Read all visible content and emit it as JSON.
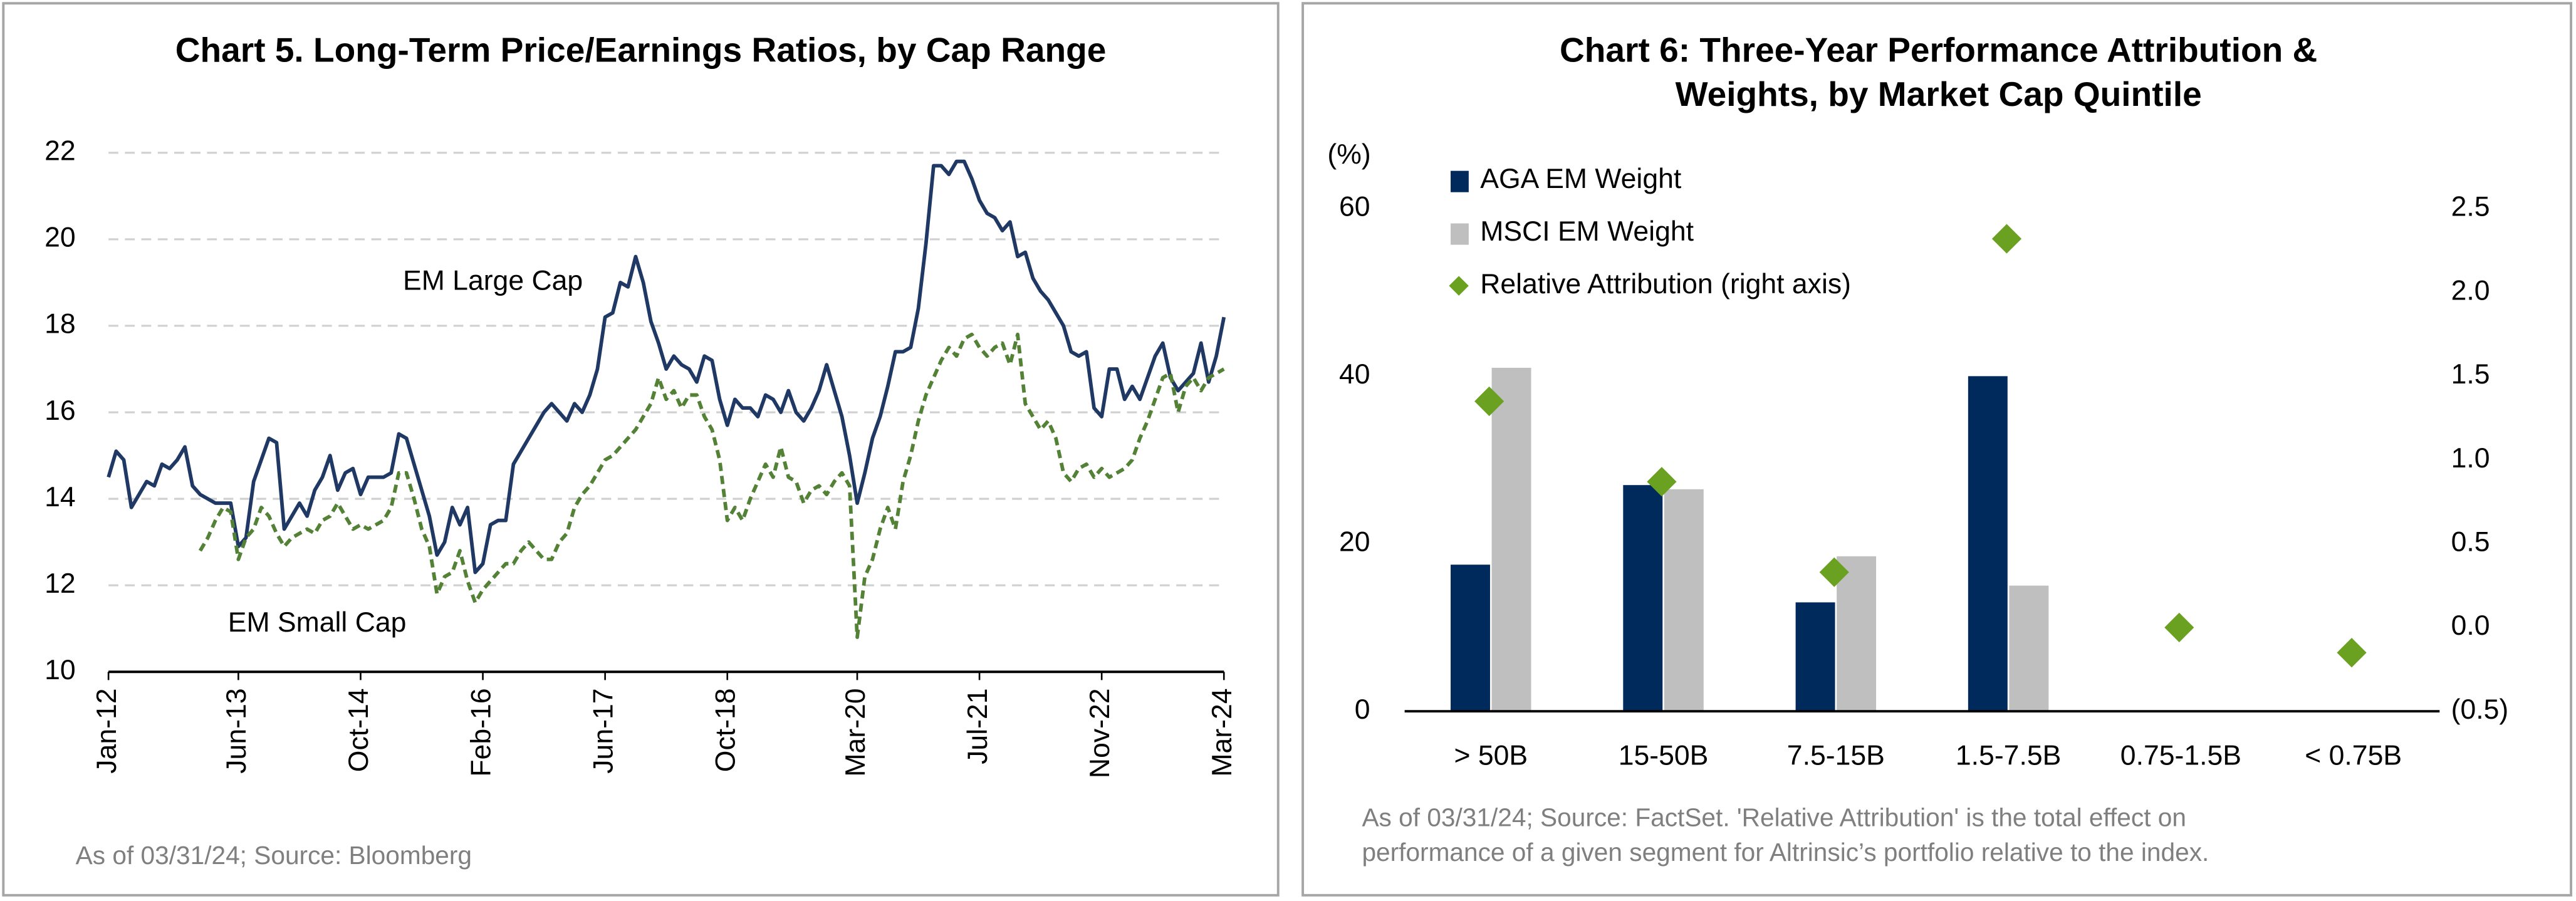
{
  "chart_data": [
    {
      "type": "line",
      "title": "Chart 5. Long-Term Price/Earnings Ratios, by Cap Range",
      "note": "As of 03/31/24; Source: Bloomberg",
      "categories": [
        "Jan-12",
        null,
        null,
        null,
        null,
        null,
        null,
        null,
        null,
        null,
        null,
        null,
        null,
        null,
        null,
        null,
        null,
        "Jun-13",
        null,
        null,
        null,
        null,
        null,
        null,
        null,
        null,
        null,
        null,
        null,
        null,
        null,
        null,
        null,
        "Oct-14",
        null,
        null,
        null,
        null,
        null,
        null,
        null,
        null,
        null,
        null,
        null,
        null,
        null,
        null,
        null,
        "Feb-16",
        null,
        null,
        null,
        null,
        null,
        null,
        null,
        null,
        null,
        null,
        null,
        null,
        null,
        null,
        null,
        "Jun-17",
        null,
        null,
        null,
        null,
        null,
        null,
        null,
        null,
        null,
        null,
        null,
        null,
        null,
        null,
        null,
        "Oct-18",
        null,
        null,
        null,
        null,
        null,
        null,
        null,
        null,
        null,
        null,
        null,
        null,
        null,
        null,
        null,
        null,
        "Mar-20",
        null,
        null,
        null,
        null,
        null,
        null,
        null,
        null,
        null,
        null,
        null,
        null,
        null,
        null,
        null,
        "Jul-21",
        null,
        null,
        null,
        null,
        null,
        null,
        null,
        null,
        null,
        null,
        null,
        null,
        null,
        null,
        null,
        "Nov-22",
        null,
        null,
        null,
        null,
        null,
        null,
        null,
        null,
        null,
        null,
        null,
        null,
        null,
        null,
        null,
        "Mar-24"
      ],
      "series": [
        {
          "name": "EM Large Cap",
          "color": "#1f3864",
          "dash": false,
          "values": [
            14.5,
            15.1,
            14.9,
            13.8,
            14.1,
            14.4,
            14.3,
            14.8,
            14.7,
            14.9,
            15.2,
            14.3,
            14.1,
            14.0,
            13.9,
            13.9,
            13.9,
            12.9,
            13.1,
            14.4,
            14.9,
            15.4,
            15.3,
            13.3,
            13.6,
            13.9,
            13.6,
            14.2,
            14.5,
            15.0,
            14.2,
            14.6,
            14.7,
            14.1,
            14.5,
            14.5,
            14.5,
            14.6,
            15.5,
            15.4,
            14.8,
            14.2,
            13.6,
            12.7,
            13.0,
            13.8,
            13.4,
            13.8,
            12.3,
            12.5,
            13.4,
            13.5,
            13.5,
            14.8,
            15.1,
            15.4,
            15.7,
            16.0,
            16.2,
            16.0,
            15.8,
            16.2,
            16.0,
            16.4,
            17.0,
            18.2,
            18.3,
            19.0,
            18.9,
            19.6,
            19.0,
            18.1,
            17.6,
            17.0,
            17.3,
            17.1,
            17.0,
            16.7,
            17.3,
            17.2,
            16.3,
            15.7,
            16.3,
            16.1,
            16.1,
            15.9,
            16.4,
            16.3,
            16.0,
            16.5,
            16.0,
            15.8,
            16.1,
            16.5,
            17.1,
            16.5,
            15.9,
            15.0,
            13.9,
            14.6,
            15.4,
            15.9,
            16.6,
            17.4,
            17.4,
            17.5,
            18.4,
            19.9,
            21.7,
            21.7,
            21.5,
            21.8,
            21.8,
            21.4,
            20.9,
            20.6,
            20.5,
            20.2,
            20.4,
            19.6,
            19.7,
            19.1,
            18.8,
            18.6,
            18.3,
            18.0,
            17.4,
            17.3,
            17.4,
            16.1,
            15.9,
            17.0,
            17.0,
            16.3,
            16.6,
            16.3,
            16.8,
            17.3,
            17.6,
            16.8,
            16.5,
            16.7,
            16.9,
            17.6,
            16.7,
            17.3,
            18.2
          ]
        },
        {
          "name": "EM Small Cap",
          "color": "#538135",
          "dash": true,
          "values": [
            null,
            null,
            null,
            null,
            null,
            null,
            null,
            null,
            null,
            null,
            null,
            null,
            12.8,
            13.1,
            13.5,
            13.8,
            13.7,
            12.6,
            13.1,
            13.3,
            13.8,
            13.6,
            13.2,
            12.9,
            13.1,
            13.2,
            13.3,
            13.2,
            13.5,
            13.6,
            13.9,
            13.6,
            13.3,
            13.4,
            13.3,
            13.4,
            13.5,
            13.8,
            14.6,
            14.6,
            14.0,
            13.3,
            12.9,
            11.8,
            12.2,
            12.3,
            12.8,
            12.1,
            11.6,
            11.9,
            12.1,
            12.3,
            12.5,
            12.5,
            12.8,
            13.0,
            12.8,
            12.6,
            12.6,
            13.0,
            13.2,
            13.8,
            14.1,
            14.3,
            14.6,
            14.9,
            15.0,
            15.2,
            15.4,
            15.6,
            15.9,
            16.2,
            16.8,
            16.3,
            16.5,
            16.1,
            16.4,
            16.4,
            15.9,
            15.6,
            14.9,
            13.5,
            13.8,
            13.5,
            14.0,
            14.4,
            14.8,
            14.5,
            15.2,
            14.5,
            14.4,
            13.9,
            14.2,
            14.3,
            14.1,
            14.4,
            14.6,
            14.3,
            10.8,
            12.2,
            12.6,
            13.3,
            13.8,
            13.3,
            14.4,
            15.0,
            15.8,
            16.4,
            16.8,
            17.2,
            17.5,
            17.3,
            17.7,
            17.8,
            17.5,
            17.3,
            17.5,
            17.6,
            17.1,
            17.8,
            16.2,
            15.9,
            15.6,
            15.8,
            15.4,
            14.6,
            14.4,
            14.7,
            14.8,
            14.5,
            14.7,
            14.5,
            14.6,
            14.7,
            14.9,
            15.4,
            15.8,
            16.3,
            16.8,
            16.9,
            16.0,
            16.6,
            16.8,
            16.5,
            16.8,
            16.9,
            17.0
          ]
        }
      ],
      "ylim": [
        10,
        22
      ],
      "yticks": [
        10,
        12,
        14,
        16,
        18,
        20,
        22
      ],
      "grid": true
    },
    {
      "type": "bar",
      "title": [
        "Chart 6: Three-Year Performance Attribution &",
        "Weights, by Market Cap Quintile"
      ],
      "note": [
        "As of 03/31/24; Source: FactSet. 'Relative Attribution' is the total effect on",
        "performance of a given segment for Altrinsic’s portfolio relative to the index."
      ],
      "y_label": "(%)",
      "categories": [
        "> 50B",
        "15-50B",
        "7.5-15B",
        "1.5-7.5B",
        "0.75-1.5B",
        "< 0.75B"
      ],
      "series": [
        {
          "name": "AGA EM Weight",
          "color": "#002a5c",
          "values": [
            17.5,
            27,
            13,
            40,
            null,
            null
          ]
        },
        {
          "name": "MSCI EM Weight",
          "color": "#bfbfbf",
          "values": [
            41,
            26.5,
            18.5,
            15,
            null,
            null
          ]
        },
        {
          "name": "Relative Attribution (right axis)",
          "color": "#6aa121",
          "type": "scatter",
          "axis": "y2",
          "values": [
            1.35,
            0.87,
            0.33,
            2.32,
            0.0,
            -0.15
          ]
        }
      ],
      "ylim": [
        0,
        60
      ],
      "yticks": [
        0,
        20,
        40,
        60
      ],
      "y2lim": [
        -0.5,
        2.5
      ],
      "y2ticks": [
        {
          "value": -0.5,
          "label": "(0.5)"
        },
        {
          "value": 0,
          "label": "0.0"
        },
        0.5,
        {
          "value": 1,
          "label": "1.0"
        },
        1.5,
        {
          "value": 2,
          "label": "2.0"
        },
        2.5
      ],
      "legend": "upper-left",
      "grid": false
    }
  ]
}
